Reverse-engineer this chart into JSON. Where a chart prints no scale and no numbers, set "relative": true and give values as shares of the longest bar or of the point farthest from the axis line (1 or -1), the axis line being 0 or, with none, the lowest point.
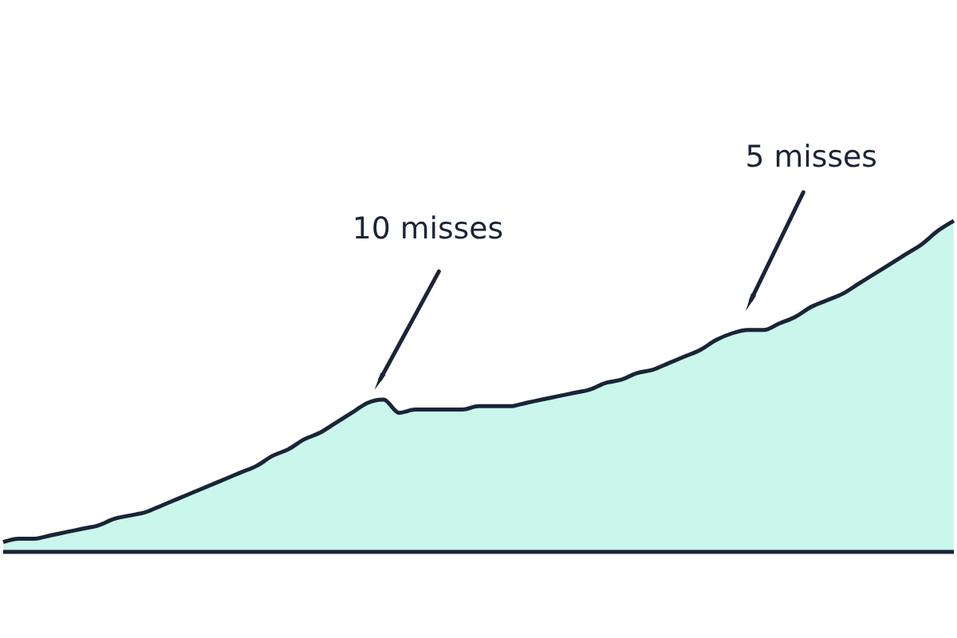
{
  "chart_data": {
    "type": "area",
    "relative": true,
    "categories": [
      null,
      null,
      null,
      null,
      null,
      null,
      null,
      null,
      null,
      null,
      null,
      null,
      null,
      null,
      null,
      null,
      null,
      null,
      null,
      null,
      null,
      null,
      null,
      null,
      null,
      null,
      null,
      null,
      null,
      null,
      null,
      null,
      null,
      null,
      null,
      null,
      null,
      null,
      null,
      null,
      null,
      null,
      null,
      null,
      null,
      null,
      null,
      null,
      null,
      null,
      null,
      null,
      null,
      null,
      null,
      null,
      null,
      null,
      null,
      null,
      null
    ],
    "series": [
      {
        "color": "#b3f2e3",
        "values": [
          0.03,
          0.04,
          0.04,
          0.05,
          0.06,
          0.07,
          0.08,
          0.1,
          0.11,
          0.12,
          0.14,
          0.16,
          0.18,
          0.2,
          0.22,
          0.24,
          0.26,
          0.29,
          0.31,
          0.34,
          0.36,
          0.39,
          0.42,
          0.45,
          0.46,
          0.42,
          0.43,
          0.43,
          0.43,
          0.43,
          0.44,
          0.44,
          0.44,
          0.45,
          0.46,
          0.47,
          0.48,
          0.49,
          0.51,
          0.52,
          0.54,
          0.55,
          0.57,
          0.59,
          0.61,
          0.64,
          0.66,
          0.67,
          0.67,
          0.69,
          0.71,
          0.74,
          0.76,
          0.78,
          0.81,
          0.84,
          0.87,
          0.9,
          0.93,
          0.97,
          1.0
        ]
      }
    ],
    "annotations": [
      "10 misses",
      "5 misses"
    ]
  }
}
